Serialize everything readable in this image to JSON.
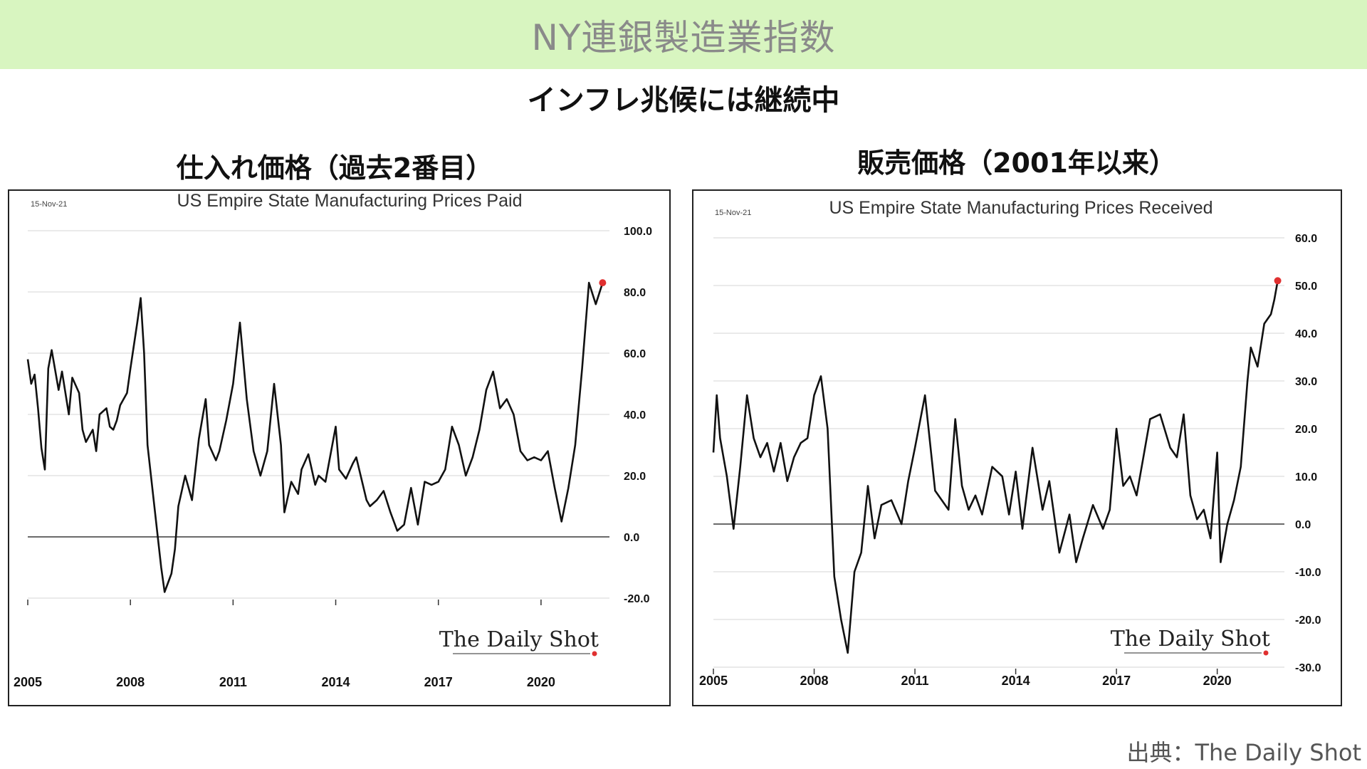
{
  "header": {
    "title": "NY連銀製造業指数",
    "subtitle": "インフレ兆候には継続中"
  },
  "panels": [
    {
      "heading": "仕入れ価格（過去2番目）"
    },
    {
      "heading": "販売価格（2001年以来）"
    }
  ],
  "source": "出典：The Daily Shot",
  "colors": {
    "banner": "#d8f5c0",
    "line": "#111111",
    "latest_marker": "#e03030",
    "grid": "#e3e3e3"
  },
  "chart_data": [
    {
      "type": "line",
      "title": "US Empire State Manufacturing Prices Paid",
      "date": "15-Nov-21",
      "watermark": "The Daily Shot",
      "ylim": [
        -20,
        100
      ],
      "yticks": [
        100,
        80,
        60,
        40,
        20,
        0,
        -20
      ],
      "ytick_labels": [
        "100.0",
        "80.0",
        "60.0",
        "40.0",
        "20.0",
        "0.0",
        "-20.0"
      ],
      "xlim": [
        2005,
        2022.0
      ],
      "xticks": [
        2005,
        2008,
        2011,
        2014,
        2017,
        2020
      ],
      "xtick_labels": [
        "2005",
        "2008",
        "2011",
        "2014",
        "2017",
        "2020"
      ],
      "grid": true,
      "zero_line": true,
      "highlight_last": true,
      "x": [
        2005.0,
        2005.1,
        2005.2,
        2005.3,
        2005.4,
        2005.5,
        2005.6,
        2005.7,
        2005.9,
        2006.0,
        2006.2,
        2006.3,
        2006.5,
        2006.6,
        2006.7,
        2006.9,
        2007.0,
        2007.1,
        2007.3,
        2007.4,
        2007.5,
        2007.6,
        2007.7,
        2007.9,
        2008.0,
        2008.2,
        2008.3,
        2008.4,
        2008.5,
        2008.6,
        2008.9,
        2009.0,
        2009.1,
        2009.2,
        2009.3,
        2009.4,
        2009.6,
        2009.8,
        2010.0,
        2010.2,
        2010.3,
        2010.5,
        2010.6,
        2010.8,
        2011.0,
        2011.2,
        2011.4,
        2011.6,
        2011.8,
        2012.0,
        2012.2,
        2012.4,
        2012.5,
        2012.7,
        2012.9,
        2013.0,
        2013.2,
        2013.4,
        2013.5,
        2013.7,
        2014.0,
        2014.1,
        2014.3,
        2014.5,
        2014.6,
        2014.9,
        2015.0,
        2015.2,
        2015.4,
        2015.6,
        2015.8,
        2016.0,
        2016.2,
        2016.4,
        2016.6,
        2016.8,
        2017.0,
        2017.2,
        2017.4,
        2017.6,
        2017.8,
        2018.0,
        2018.2,
        2018.4,
        2018.6,
        2018.8,
        2019.0,
        2019.2,
        2019.4,
        2019.6,
        2019.8,
        2020.0,
        2020.2,
        2020.4,
        2020.6,
        2020.8,
        2021.0,
        2021.2,
        2021.4,
        2021.6,
        2021.8
      ],
      "y": [
        58,
        50,
        53,
        42,
        29,
        22,
        55,
        61,
        48,
        54,
        40,
        52,
        47,
        35,
        31,
        35,
        28,
        40,
        42,
        36,
        35,
        38,
        43,
        47,
        55,
        70,
        78,
        60,
        30,
        20,
        -10,
        -18,
        -15,
        -12,
        -4,
        10,
        20,
        12,
        32,
        45,
        30,
        25,
        28,
        38,
        50,
        70,
        45,
        28,
        20,
        28,
        50,
        30,
        8,
        18,
        14,
        22,
        27,
        17,
        20,
        18,
        36,
        22,
        19,
        24,
        26,
        12,
        10,
        12,
        15,
        8,
        2,
        4,
        16,
        4,
        18,
        17,
        18,
        22,
        36,
        30,
        20,
        26,
        35,
        48,
        54,
        42,
        45,
        40,
        28,
        25,
        26,
        25,
        28,
        16,
        5,
        16,
        30,
        55,
        83,
        76,
        83
      ]
    },
    {
      "type": "line",
      "title": "US Empire State Manufacturing Prices Received",
      "date": "15-Nov-21",
      "watermark": "The Daily Shot",
      "ylim": [
        -30,
        60
      ],
      "yticks": [
        60,
        50,
        40,
        30,
        20,
        10,
        0,
        -10,
        -20,
        -30
      ],
      "ytick_labels": [
        "60.0",
        "50.0",
        "40.0",
        "30.0",
        "20.0",
        "10.0",
        "0.0",
        "-10.0",
        "-20.0",
        "-30.0"
      ],
      "xlim": [
        2005,
        2022.0
      ],
      "xticks": [
        2005,
        2008,
        2011,
        2014,
        2017,
        2020
      ],
      "xtick_labels": [
        "2005",
        "2008",
        "2011",
        "2014",
        "2017",
        "2020"
      ],
      "grid": true,
      "zero_line": true,
      "highlight_last": true,
      "x": [
        2005.0,
        2005.1,
        2005.2,
        2005.4,
        2005.6,
        2005.8,
        2006.0,
        2006.2,
        2006.4,
        2006.6,
        2006.8,
        2007.0,
        2007.2,
        2007.4,
        2007.6,
        2007.8,
        2008.0,
        2008.2,
        2008.4,
        2008.6,
        2008.8,
        2009.0,
        2009.2,
        2009.4,
        2009.6,
        2009.8,
        2010.0,
        2010.3,
        2010.6,
        2010.8,
        2011.0,
        2011.3,
        2011.6,
        2011.8,
        2012.0,
        2012.2,
        2012.4,
        2012.6,
        2012.8,
        2013.0,
        2013.3,
        2013.6,
        2013.8,
        2014.0,
        2014.2,
        2014.5,
        2014.8,
        2015.0,
        2015.3,
        2015.6,
        2015.8,
        2016.0,
        2016.3,
        2016.6,
        2016.8,
        2017.0,
        2017.2,
        2017.4,
        2017.6,
        2017.8,
        2018.0,
        2018.3,
        2018.6,
        2018.8,
        2019.0,
        2019.2,
        2019.4,
        2019.6,
        2019.8,
        2020.0,
        2020.1,
        2020.3,
        2020.5,
        2020.7,
        2020.9,
        2021.0,
        2021.2,
        2021.4,
        2021.6,
        2021.7,
        2021.8
      ],
      "y": [
        15,
        27,
        18,
        10,
        -1,
        12,
        27,
        18,
        14,
        17,
        11,
        17,
        9,
        14,
        17,
        18,
        27,
        31,
        20,
        -11,
        -20,
        -27,
        -10,
        -6,
        8,
        -3,
        4,
        5,
        0,
        9,
        16,
        27,
        7,
        5,
        3,
        22,
        8,
        3,
        6,
        2,
        12,
        10,
        2,
        11,
        -1,
        16,
        3,
        9,
        -6,
        2,
        -8,
        -3,
        4,
        -1,
        3,
        20,
        8,
        10,
        6,
        14,
        22,
        23,
        16,
        14,
        23,
        6,
        1,
        3,
        -3,
        15,
        -8,
        0,
        5,
        12,
        30,
        37,
        33,
        42,
        44,
        47,
        51
      ]
    }
  ]
}
